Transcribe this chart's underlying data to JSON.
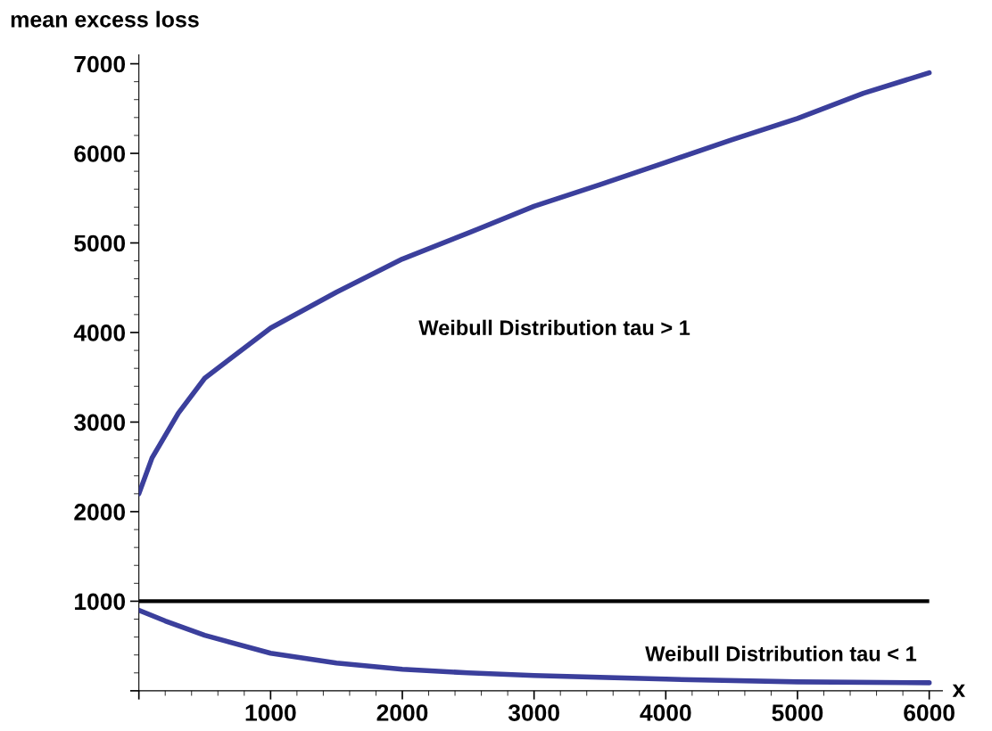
{
  "chart_data": {
    "type": "line",
    "xlabel": "x",
    "ylabel": "mean excess loss",
    "series": [
      {
        "name": "Weibull Distribution tau > 1",
        "color": "#3b3f9c",
        "x": [
          0,
          100,
          300,
          500,
          1000,
          1500,
          2000,
          2500,
          3000,
          3500,
          4000,
          4500,
          5000,
          5500,
          6000
        ],
        "values": [
          2200,
          2600,
          3100,
          3490,
          4050,
          4450,
          4820,
          5110,
          5410,
          5650,
          5900,
          6150,
          6390,
          6670,
          6900
        ]
      },
      {
        "name": "Weibull Distribution tau < 1",
        "color": "#3b3f9c",
        "x": [
          0,
          200,
          500,
          1000,
          1500,
          2000,
          2500,
          3000,
          4000,
          5000,
          6000
        ],
        "values": [
          900,
          780,
          620,
          420,
          310,
          240,
          200,
          170,
          130,
          100,
          90
        ]
      }
    ],
    "ref_lines": [
      {
        "axis": "y",
        "value": 1000,
        "color": "#000000"
      }
    ],
    "xlim": [
      0,
      6100
    ],
    "ylim": [
      0,
      7100
    ],
    "xticks": [
      {
        "value": 0,
        "label": null
      },
      1000,
      2000,
      3000,
      4000,
      5000,
      6000
    ],
    "yticks": [
      {
        "value": 0,
        "label": null
      },
      1000,
      2000,
      3000,
      4000,
      5000,
      6000,
      7000
    ],
    "grid": false,
    "marker": "none",
    "line_style": "solid"
  }
}
